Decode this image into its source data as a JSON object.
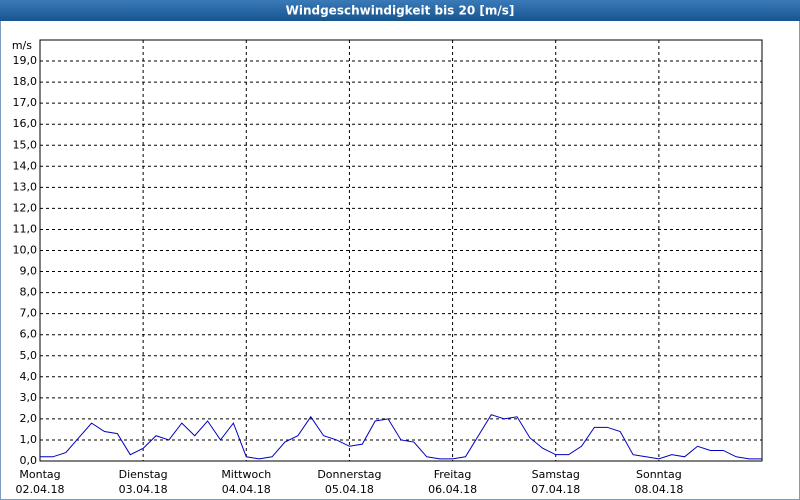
{
  "chart_data": {
    "type": "line",
    "title": "Windgeschwindigkeit bis 20 [m/s]",
    "y_label": "m/s",
    "xlim": [
      0,
      7
    ],
    "ylim": [
      0,
      20
    ],
    "xticks": [
      {
        "value": 0,
        "label": "Montag",
        "sublabel": "02.04.18"
      },
      {
        "value": 1,
        "label": "Dienstag",
        "sublabel": "03.04.18"
      },
      {
        "value": 2,
        "label": "Mittwoch",
        "sublabel": "04.04.18"
      },
      {
        "value": 3,
        "label": "Donnerstag",
        "sublabel": "05.04.18"
      },
      {
        "value": 4,
        "label": "Freitag",
        "sublabel": "06.04.18"
      },
      {
        "value": 5,
        "label": "Samstag",
        "sublabel": "07.04.18"
      },
      {
        "value": 6,
        "label": "Sonntag",
        "sublabel": "08.04.18"
      }
    ],
    "yticks": [
      {
        "value": 0,
        "label": "0,0"
      },
      {
        "value": 1,
        "label": "1,0"
      },
      {
        "value": 2,
        "label": "2,0"
      },
      {
        "value": 3,
        "label": "3,0"
      },
      {
        "value": 4,
        "label": "4,0"
      },
      {
        "value": 5,
        "label": "5,0"
      },
      {
        "value": 6,
        "label": "6,0"
      },
      {
        "value": 7,
        "label": "7,0"
      },
      {
        "value": 8,
        "label": "8,0"
      },
      {
        "value": 9,
        "label": "9,0"
      },
      {
        "value": 10,
        "label": "10,0"
      },
      {
        "value": 11,
        "label": "11,0"
      },
      {
        "value": 12,
        "label": "12,0"
      },
      {
        "value": 13,
        "label": "13,0"
      },
      {
        "value": 14,
        "label": "14,0"
      },
      {
        "value": 15,
        "label": "15,0"
      },
      {
        "value": 16,
        "label": "16,0"
      },
      {
        "value": 17,
        "label": "17,0"
      },
      {
        "value": 18,
        "label": "18,0"
      },
      {
        "value": 19,
        "label": "19,0"
      }
    ],
    "grid": true,
    "x": [
      0,
      0.125,
      0.25,
      0.375,
      0.5,
      0.625,
      0.75,
      0.875,
      1,
      1.125,
      1.25,
      1.375,
      1.5,
      1.625,
      1.75,
      1.875,
      2,
      2.125,
      2.25,
      2.375,
      2.5,
      2.625,
      2.75,
      2.875,
      3,
      3.125,
      3.25,
      3.375,
      3.5,
      3.625,
      3.75,
      3.875,
      4,
      4.125,
      4.25,
      4.375,
      4.5,
      4.625,
      4.75,
      4.875,
      5,
      5.125,
      5.25,
      5.375,
      5.5,
      5.625,
      5.75,
      5.875,
      6,
      6.125,
      6.25,
      6.375,
      6.5,
      6.625,
      6.75,
      6.875,
      7
    ],
    "series": [
      {
        "color": "#0000c0",
        "values": [
          0.2,
          0.2,
          0.4,
          1.1,
          1.8,
          1.4,
          1.3,
          0.3,
          0.6,
          1.2,
          1.0,
          1.8,
          1.2,
          1.9,
          1.0,
          1.8,
          0.2,
          0.1,
          0.2,
          0.9,
          1.2,
          2.1,
          1.2,
          1.0,
          0.7,
          0.8,
          1.9,
          2.0,
          1.0,
          0.9,
          0.2,
          0.1,
          0.1,
          0.2,
          1.2,
          2.2,
          2.0,
          2.1,
          1.1,
          0.6,
          0.3,
          0.3,
          0.7,
          1.6,
          1.6,
          1.4,
          0.3,
          0.2,
          0.1,
          0.3,
          0.2,
          0.7,
          0.5,
          0.5,
          0.2,
          0.1,
          0.1
        ]
      }
    ]
  }
}
